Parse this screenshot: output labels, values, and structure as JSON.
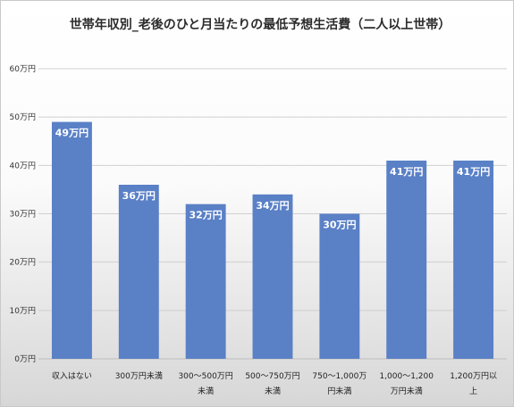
{
  "chart_data": {
    "type": "bar",
    "title": "世帯年収別_老後のひと月当たりの最低予想生活費（二人以上世帯）",
    "categories": [
      [
        "収入はない"
      ],
      [
        "300万円未満"
      ],
      [
        "300～500万円",
        "未満"
      ],
      [
        "500～750万円",
        "未満"
      ],
      [
        "750～1,000万",
        "円未満"
      ],
      [
        "1,000～1,200",
        "万円未満"
      ],
      [
        "1,200万円以",
        "上"
      ]
    ],
    "values": [
      49,
      36,
      32,
      34,
      30,
      41,
      41
    ],
    "data_labels": [
      "49万円",
      "36万円",
      "32万円",
      "34万円",
      "30万円",
      "41万円",
      "41万円"
    ],
    "yticks": [
      "0万円",
      "10万円",
      "20万円",
      "30万円",
      "40万円",
      "50万円",
      "60万円"
    ],
    "ylim": [
      0,
      60
    ],
    "grid": true,
    "bar_color": "#5a80c6"
  }
}
